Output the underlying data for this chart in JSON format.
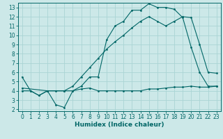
{
  "xlabel": "Humidex (Indice chaleur)",
  "bg_color": "#cce8e8",
  "line_color": "#006666",
  "grid_color": "#aad4d4",
  "spine_color": "#006666",
  "xlim": [
    -0.5,
    23.5
  ],
  "ylim": [
    1.8,
    13.5
  ],
  "xticks": [
    0,
    1,
    2,
    3,
    4,
    5,
    6,
    7,
    8,
    9,
    10,
    11,
    12,
    13,
    14,
    15,
    16,
    17,
    18,
    19,
    20,
    21,
    22,
    23
  ],
  "yticks": [
    2,
    3,
    4,
    5,
    6,
    7,
    8,
    9,
    10,
    11,
    12,
    13
  ],
  "line1_x": [
    0,
    1,
    2,
    3,
    4,
    5,
    6,
    7,
    8,
    9,
    10,
    11,
    12,
    13,
    14,
    15,
    16,
    17,
    18,
    19,
    20,
    21,
    22,
    23
  ],
  "line1_y": [
    5.5,
    4.0,
    3.5,
    4.0,
    2.5,
    2.2,
    4.0,
    4.5,
    5.5,
    5.5,
    9.5,
    11.0,
    11.5,
    12.7,
    12.7,
    13.4,
    13.0,
    13.0,
    12.8,
    11.9,
    8.7,
    6.0,
    4.5,
    4.5
  ],
  "line2_x": [
    0,
    1,
    2,
    3,
    4,
    5,
    6,
    7,
    8,
    9,
    10,
    11,
    12,
    13,
    14,
    15,
    16,
    17,
    18,
    19,
    20,
    21,
    22,
    23
  ],
  "line2_y": [
    4.0,
    4.0,
    3.5,
    4.0,
    4.0,
    4.0,
    4.0,
    4.2,
    4.3,
    4.0,
    4.0,
    4.0,
    4.0,
    4.0,
    4.0,
    4.2,
    4.2,
    4.3,
    4.4,
    4.4,
    4.5,
    4.4,
    4.4,
    4.5
  ],
  "line3_x": [
    0,
    3,
    5,
    6,
    7,
    8,
    9,
    10,
    11,
    12,
    13,
    14,
    15,
    16,
    17,
    18,
    19,
    20,
    21,
    22,
    23
  ],
  "line3_y": [
    4.3,
    4.0,
    4.0,
    4.5,
    5.5,
    6.5,
    7.5,
    8.5,
    9.3,
    10.0,
    10.8,
    11.5,
    12.0,
    11.5,
    11.0,
    11.5,
    12.0,
    11.9,
    9.0,
    6.0,
    5.9
  ],
  "xlabel_fontsize": 6.5,
  "tick_fontsize": 5.5,
  "linewidth": 0.8,
  "markersize": 2.0
}
